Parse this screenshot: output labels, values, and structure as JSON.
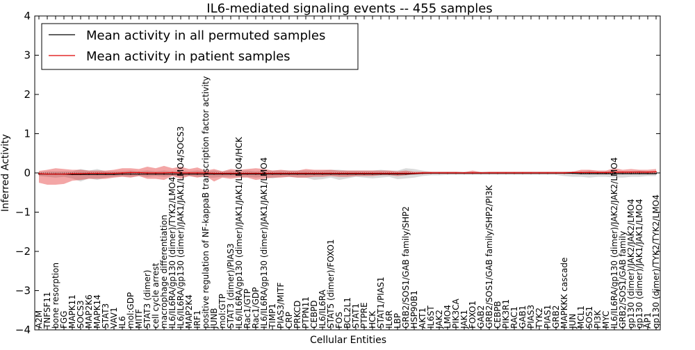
{
  "chart_data": {
    "type": "line",
    "title": "IL6-mediated signaling events -- 455 samples",
    "xlabel": "Cellular Entities",
    "ylabel": "Inferred Activity",
    "ylim": [
      -4,
      4
    ],
    "yticks": [
      "4",
      "3",
      "2",
      "1",
      "0",
      "−1",
      "−2",
      "−3",
      "−4"
    ],
    "legend": {
      "placement": "top-left",
      "entries": [
        {
          "name": "Mean activity in all permuted samples",
          "color": "#000000"
        },
        {
          "name": "Mean activity in patient samples",
          "color": "#dd0000"
        }
      ]
    },
    "categories": [
      "A2M",
      "TNFSF11",
      "bone resorption",
      "FGG",
      "MAPK11",
      "SOCS3",
      "MAP2K6",
      "MAPK14",
      "STAT3",
      "VAV1",
      "IL6",
      "mol:GDP",
      "MITF",
      "STAT3 (dimer)",
      "cell cycle arrest",
      "macrophage differentiation",
      "IL6/IL6RA/gp130 (dimer)/TYK2/LMO4",
      "IL6/IL6RA/gp130 (dimer)/JAK1/JAK1/LMO4/SOCS3",
      "MAP2K4",
      "IRF1",
      "positive regulation of NF-kappaB transcription factor activity",
      "JUNB",
      "mol:GTP",
      "STAT3 (dimer)/PIAS3",
      "IL6/IL6RA/gp130 (dimer)/JAK1/JAK1/LMO4/HCK",
      "Rac1/GTP",
      "Rac1/GDP",
      "IL6/IL6RA/gp130 (dimer)/JAK1/JAK1/LMO4",
      "TIMP1",
      "PIAS3/MITF",
      "CRP",
      "PRKCD",
      "PTPN11",
      "CEBPD",
      "IL6/IL6RA",
      "STAT5 (dimer)/FOXO1",
      "FOS",
      "BCL2L1",
      "STAT1",
      "PTPRE",
      "HCK",
      "STAT1/PIAS1",
      "IL6R",
      "LBP",
      "GRB2/SOS1/GAB family/SHP2",
      "HSP90B1",
      "AKT1",
      "IL6ST",
      "JAK2",
      "LMO4",
      "PIK3CA",
      "JAK1",
      "FOXO1",
      "GAB2",
      "GRB2/SOS1/GAB family/SHP2/PI3K",
      "CEBPB",
      "PIK3R1",
      "RAC1",
      "GAB1",
      "PIAS3",
      "TYK2",
      "PIAS1",
      "GRB2",
      "MAPKKK cascade",
      "JUN",
      "MCL1",
      "SOS1",
      "PI3K",
      "MYC",
      "IL6/IL6RA/gp130 (dimer)/JAK2/JAK2/LMO4",
      "GRB2/SOS1/GAB family",
      "gp130 (dimer)/JAK2/JAK2/LMO4",
      "gp130 (dimer)/JAK1/JAK1/LMO4",
      "AP1",
      "gp130 (dimer)/TYK2/TYK2/LMO4"
    ],
    "series": [
      {
        "name": "Mean activity in patient samples",
        "color": "#dd0000",
        "values": [
          -0.02,
          -0.03,
          -0.03,
          -0.03,
          -0.02,
          -0.02,
          -0.01,
          -0.01,
          -0.01,
          -0.01,
          0.0,
          0.01,
          0.01,
          0.0,
          0.0,
          0.0,
          0.01,
          0.0,
          0.0,
          0.0,
          0.0,
          -0.01,
          -0.01,
          -0.01,
          -0.01,
          -0.01,
          -0.01,
          -0.01,
          -0.01,
          -0.01,
          -0.01,
          -0.01,
          -0.01,
          -0.01,
          -0.01,
          -0.01,
          -0.01,
          -0.01,
          -0.01,
          -0.01,
          -0.01,
          -0.01,
          -0.01,
          -0.01,
          -0.01,
          -0.01,
          0.0,
          0.0,
          0.0,
          0.0,
          0.0,
          0.0,
          0.0,
          0.0,
          0.0,
          0.0,
          0.0,
          0.0,
          0.0,
          0.0,
          0.0,
          0.0,
          0.0,
          0.0,
          0.01,
          0.01,
          0.01,
          0.01,
          0.01,
          0.02,
          0.02,
          0.02,
          0.02,
          0.02,
          0.03
        ],
        "lower": [
          -0.25,
          -0.3,
          -0.3,
          -0.28,
          -0.2,
          -0.18,
          -0.15,
          -0.15,
          -0.15,
          -0.12,
          -0.1,
          -0.12,
          -0.08,
          -0.15,
          -0.15,
          -0.18,
          -0.08,
          -0.15,
          -0.08,
          -0.12,
          -0.08,
          -0.22,
          -0.12,
          -0.15,
          -0.12,
          -0.12,
          -0.18,
          -0.15,
          -0.12,
          -0.12,
          -0.1,
          -0.12,
          -0.12,
          -0.1,
          -0.1,
          -0.08,
          -0.1,
          -0.1,
          -0.08,
          -0.08,
          -0.08,
          -0.06,
          -0.06,
          -0.08,
          -0.06,
          -0.04,
          -0.03,
          -0.02,
          -0.02,
          -0.02,
          -0.02,
          -0.02,
          -0.02,
          -0.02,
          -0.02,
          -0.02,
          -0.02,
          -0.02,
          -0.02,
          -0.02,
          -0.02,
          -0.02,
          -0.02,
          -0.02,
          -0.02,
          -0.02,
          -0.02,
          -0.03,
          -0.03,
          -0.03,
          -0.02,
          -0.02,
          -0.02,
          -0.02,
          -0.02
        ],
        "upper": [
          0.05,
          0.08,
          0.12,
          0.1,
          0.08,
          0.08,
          0.06,
          0.06,
          0.06,
          0.08,
          0.12,
          0.12,
          0.1,
          0.16,
          0.12,
          0.18,
          0.12,
          0.16,
          0.1,
          0.14,
          0.06,
          0.1,
          0.04,
          0.1,
          0.08,
          0.1,
          0.12,
          0.1,
          0.06,
          0.08,
          0.06,
          0.06,
          0.1,
          0.08,
          0.08,
          0.08,
          0.06,
          0.06,
          0.06,
          0.06,
          0.06,
          0.06,
          0.06,
          0.04,
          0.06,
          0.03,
          0.03,
          0.03,
          0.03,
          0.03,
          0.03,
          0.02,
          0.06,
          0.02,
          0.03,
          0.03,
          0.03,
          0.03,
          0.03,
          0.03,
          0.03,
          0.03,
          0.03,
          0.03,
          0.03,
          0.08,
          0.08,
          0.06,
          0.06,
          0.12,
          0.08,
          0.1,
          0.08,
          0.08,
          0.1
        ]
      },
      {
        "name": "Mean activity in all permuted samples",
        "color": "#000000",
        "values": [
          -0.03,
          -0.03,
          -0.03,
          -0.03,
          -0.04,
          -0.04,
          -0.04,
          -0.04,
          -0.04,
          -0.04,
          -0.03,
          -0.03,
          -0.03,
          -0.03,
          -0.03,
          -0.03,
          -0.03,
          -0.03,
          -0.03,
          -0.03,
          -0.03,
          -0.03,
          -0.03,
          -0.03,
          -0.03,
          -0.03,
          -0.03,
          -0.03,
          -0.03,
          -0.03,
          -0.03,
          -0.03,
          -0.03,
          -0.03,
          -0.03,
          -0.03,
          -0.03,
          -0.03,
          -0.03,
          -0.03,
          -0.03,
          -0.03,
          -0.03,
          -0.03,
          -0.03,
          -0.02,
          -0.01,
          -0.01,
          -0.01,
          -0.01,
          -0.01,
          -0.01,
          -0.01,
          -0.01,
          -0.01,
          -0.01,
          -0.01,
          -0.01,
          -0.01,
          -0.01,
          -0.01,
          -0.01,
          -0.01,
          -0.01,
          -0.01,
          -0.02,
          -0.02,
          -0.02,
          -0.02,
          -0.02,
          -0.02,
          -0.02,
          -0.02,
          -0.02,
          -0.02
        ],
        "lower": [
          -0.08,
          -0.1,
          -0.12,
          -0.1,
          -0.14,
          -0.22,
          -0.14,
          -0.18,
          -0.12,
          -0.1,
          -0.08,
          -0.1,
          -0.08,
          -0.1,
          -0.08,
          -0.1,
          -0.08,
          -0.1,
          -0.08,
          -0.1,
          -0.12,
          -0.12,
          -0.1,
          -0.1,
          -0.1,
          -0.1,
          -0.12,
          -0.1,
          -0.14,
          -0.1,
          -0.1,
          -0.12,
          -0.12,
          -0.18,
          -0.16,
          -0.12,
          -0.18,
          -0.14,
          -0.1,
          -0.12,
          -0.14,
          -0.12,
          -0.1,
          -0.16,
          -0.14,
          -0.12,
          -0.08,
          -0.06,
          -0.06,
          -0.05,
          -0.05,
          -0.05,
          -0.05,
          -0.05,
          -0.05,
          -0.05,
          -0.05,
          -0.05,
          -0.05,
          -0.05,
          -0.05,
          -0.05,
          -0.05,
          -0.08,
          -0.1,
          -0.1,
          -0.12,
          -0.1,
          -0.1,
          -0.12,
          -0.12,
          -0.1,
          -0.1,
          -0.08,
          -0.08
        ],
        "upper": [
          0.02,
          0.04,
          0.04,
          0.04,
          0.04,
          0.1,
          0.06,
          0.1,
          0.04,
          0.04,
          0.04,
          0.06,
          0.04,
          0.06,
          0.04,
          0.06,
          0.04,
          0.06,
          0.04,
          0.06,
          0.04,
          0.06,
          0.04,
          0.06,
          0.04,
          0.06,
          0.04,
          0.06,
          0.06,
          0.06,
          0.06,
          0.06,
          0.06,
          0.06,
          0.06,
          0.08,
          0.08,
          0.06,
          0.06,
          0.06,
          0.06,
          0.08,
          0.06,
          0.06,
          0.12,
          0.1,
          0.06,
          0.03,
          0.03,
          0.03,
          0.03,
          0.03,
          0.03,
          0.03,
          0.03,
          0.03,
          0.03,
          0.03,
          0.03,
          0.03,
          0.03,
          0.03,
          0.03,
          0.03,
          0.04,
          0.04,
          0.06,
          0.04,
          0.04,
          0.04,
          0.04,
          0.04,
          0.06,
          0.04,
          0.04
        ]
      }
    ]
  }
}
